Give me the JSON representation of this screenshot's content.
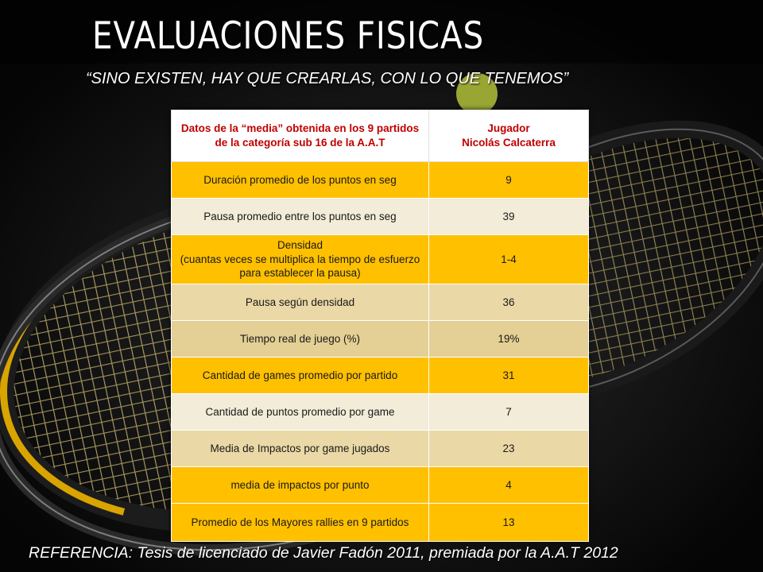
{
  "title": "EVALUACIONES FISICAS",
  "subtitle": "“SINO EXISTEN, HAY QUE CREARLAS, CON LO QUE TENEMOS”",
  "reference": "REFERENCIA: Tesis de licenciado de Javier Fadón 2011, premiada por la A.A.T 2012",
  "table": {
    "header_left": "Datos  de la “media” obtenida en los 9 partidos de la categoría sub 16 de la A.A.T",
    "header_right_line1": "Jugador",
    "header_right_line2": "Nicolás Calcaterra",
    "rows": [
      {
        "label": "Duración promedio de los puntos en seg",
        "value": "9"
      },
      {
        "label": "Pausa promedio entre los puntos en seg",
        "value": "39"
      },
      {
        "label": "Densidad",
        "label_line2": "(cuantas veces se multiplica la tiempo de esfuerzo para establecer la pausa)",
        "value": "1-4"
      },
      {
        "label": "Pausa según densidad",
        "value": "36"
      },
      {
        "label": "Tiempo real de juego (%)",
        "value": "19%"
      },
      {
        "label": "Cantidad de games promedio por partido",
        "value": "31"
      },
      {
        "label": "Cantidad de puntos promedio por game",
        "value": "7"
      },
      {
        "label": "Media de Impactos por game jugados",
        "value": "23"
      },
      {
        "label": "media de impactos por punto",
        "value": "4"
      },
      {
        "label": "Promedio de los Mayores rallies en 9 partidos",
        "value": "13"
      }
    ]
  },
  "colors": {
    "header_text": "#c00000",
    "row_gold": "#ffc000",
    "row_cream": "#f2ecd8",
    "row_wheat": "#ead8a6",
    "background": "#0b0b0b",
    "racket_frame_yellow": "#d9a400"
  }
}
